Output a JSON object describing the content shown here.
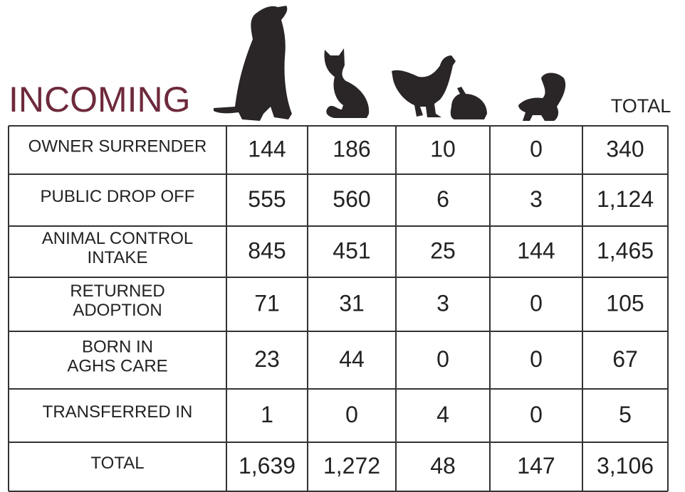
{
  "title": "INCOMING",
  "total_header": "TOTAL",
  "table": {
    "rows": [
      {
        "label": [
          "OWNER SURRENDER"
        ],
        "cells": [
          "144",
          "186",
          "10",
          "0",
          "340"
        ]
      },
      {
        "label": [
          "PUBLIC DROP OFF"
        ],
        "cells": [
          "555",
          "560",
          "6",
          "3",
          "1,124"
        ]
      },
      {
        "label": [
          "ANIMAL CONTROL",
          "INTAKE"
        ],
        "cells": [
          "845",
          "451",
          "25",
          "144",
          "1,465"
        ]
      },
      {
        "label": [
          "RETURNED",
          "ADOPTION"
        ],
        "cells": [
          "71",
          "31",
          "3",
          "0",
          "105"
        ]
      },
      {
        "label": [
          "BORN IN",
          "AGHS  CARE"
        ],
        "cells": [
          "23",
          "44",
          "0",
          "0",
          "67"
        ]
      },
      {
        "label": [
          "TRANSFERRED IN"
        ],
        "cells": [
          "1",
          "0",
          "4",
          "0",
          "5"
        ]
      },
      {
        "label": [
          "TOTAL"
        ],
        "cells": [
          "1,639",
          "1,272",
          "48",
          "147",
          "3,106"
        ]
      }
    ]
  }
}
